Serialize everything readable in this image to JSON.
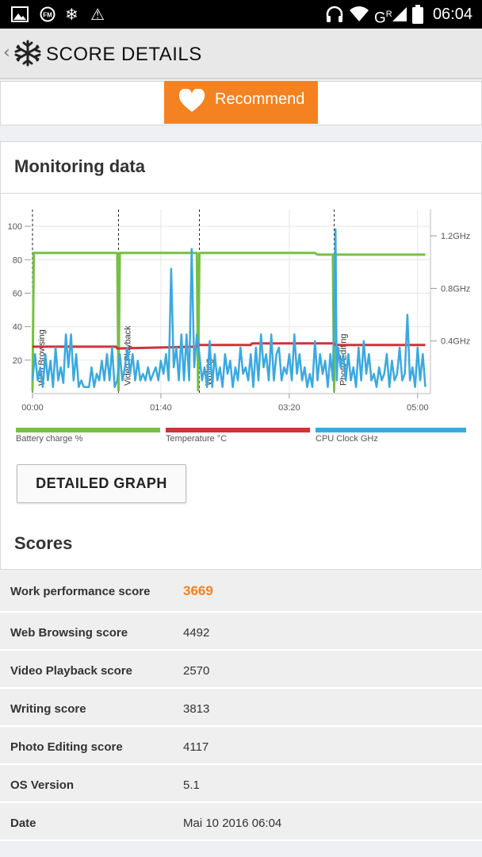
{
  "status_bar": {
    "time": "06:04",
    "network_label": "G",
    "network_superscript": "R",
    "icons": [
      "image-icon",
      "fm-icon",
      "snowflake-icon",
      "warning-icon",
      "headset-icon",
      "wifi-icon",
      "signal-icon",
      "battery-icon"
    ]
  },
  "app_bar": {
    "title": "SCORE DETAILS",
    "back_icon": "chevron-left-icon",
    "logo_icon": "snowflake-logo-icon"
  },
  "recommend": {
    "label": "Recommend",
    "icon": "heart-icon",
    "color": "#f58220"
  },
  "monitoring": {
    "title": "Monitoring data",
    "detailed_graph_button": "DETAILED GRAPH"
  },
  "chart_data": {
    "type": "line",
    "x_ticks": [
      "00:00",
      "01:40",
      "03:20",
      "05:00"
    ],
    "x_range_seconds": [
      0,
      310
    ],
    "y_left_ticks": [
      "20",
      "40",
      "60",
      "80",
      "100"
    ],
    "y_left_range": [
      0,
      110
    ],
    "y_right_ticks": [
      "0.4GHz",
      "0.8GHz",
      "1.2GHz"
    ],
    "y_right_range_ghz": [
      0,
      1.4
    ],
    "segments": [
      {
        "label": "Web Browsing",
        "start": 0
      },
      {
        "label": "Video Playback",
        "start": 67
      },
      {
        "label": "Writing",
        "start": 130
      },
      {
        "label": "Photo Editing",
        "start": 235
      }
    ],
    "legend": [
      {
        "name": "Battery charge %",
        "color": "#76c043"
      },
      {
        "name": "Temperature °C",
        "color": "#d0333a"
      },
      {
        "name": "CPU Clock GHz",
        "color": "#3ba9e0"
      }
    ],
    "series": [
      {
        "name": "Battery charge %",
        "color": "#76c043",
        "points": [
          [
            0,
            2
          ],
          [
            1,
            84
          ],
          [
            66,
            84
          ],
          [
            67,
            2
          ],
          [
            68,
            84
          ],
          [
            128,
            84
          ],
          [
            129,
            2
          ],
          [
            130,
            84
          ],
          [
            220,
            84
          ],
          [
            222,
            83
          ],
          [
            234,
            83
          ],
          [
            235,
            2
          ],
          [
            236,
            83
          ],
          [
            306,
            83
          ]
        ]
      },
      {
        "name": "Temperature °C",
        "color": "#d0333a",
        "points": [
          [
            0,
            28
          ],
          [
            65,
            28
          ],
          [
            66,
            27
          ],
          [
            128,
            28
          ],
          [
            129,
            29
          ],
          [
            170,
            29
          ],
          [
            171,
            30
          ],
          [
            235,
            30
          ],
          [
            236,
            29
          ],
          [
            306,
            29
          ]
        ]
      },
      {
        "name": "CPU Clock GHz",
        "color": "#3ba9e0",
        "points": [
          [
            0,
            0.1
          ],
          [
            2,
            0.3
          ],
          [
            4,
            0.1
          ],
          [
            6,
            0.2
          ],
          [
            8,
            0.05
          ],
          [
            10,
            0.3
          ],
          [
            12,
            0.1
          ],
          [
            14,
            0.25
          ],
          [
            16,
            0.05
          ],
          [
            18,
            0.35
          ],
          [
            20,
            0.1
          ],
          [
            22,
            0.2
          ],
          [
            24,
            0.08
          ],
          [
            26,
            0.45
          ],
          [
            28,
            0.2
          ],
          [
            30,
            0.45
          ],
          [
            32,
            0.1
          ],
          [
            34,
            0.3
          ],
          [
            36,
            0.05
          ],
          [
            38,
            0.1
          ],
          [
            40,
            0.05
          ],
          [
            42,
            0.05
          ],
          [
            44,
            0.05
          ],
          [
            46,
            0.2
          ],
          [
            48,
            0.05
          ],
          [
            50,
            0.15
          ],
          [
            52,
            0.1
          ],
          [
            54,
            0.25
          ],
          [
            56,
            0.1
          ],
          [
            58,
            0.3
          ],
          [
            60,
            0.1
          ],
          [
            62,
            0.35
          ],
          [
            64,
            0.05
          ],
          [
            66,
            0.1
          ],
          [
            68,
            0.3
          ],
          [
            70,
            0.1
          ],
          [
            72,
            0.2
          ],
          [
            74,
            0.35
          ],
          [
            76,
            0.15
          ],
          [
            78,
            0.3
          ],
          [
            80,
            0.1
          ],
          [
            82,
            0.25
          ],
          [
            84,
            0.1
          ],
          [
            86,
            0.15
          ],
          [
            88,
            0.1
          ],
          [
            90,
            0.2
          ],
          [
            92,
            0.1
          ],
          [
            94,
            0.15
          ],
          [
            96,
            0.2
          ],
          [
            98,
            0.1
          ],
          [
            100,
            0.25
          ],
          [
            102,
            0.15
          ],
          [
            104,
            0.3
          ],
          [
            106,
            0.1
          ],
          [
            108,
            0.95
          ],
          [
            110,
            0.2
          ],
          [
            112,
            0.35
          ],
          [
            114,
            0.1
          ],
          [
            116,
            0.45
          ],
          [
            118,
            0.1
          ],
          [
            120,
            0.45
          ],
          [
            122,
            0.1
          ],
          [
            124,
            1.1
          ],
          [
            126,
            0.2
          ],
          [
            128,
            0.45
          ],
          [
            130,
            0.3
          ],
          [
            132,
            0.1
          ],
          [
            134,
            0.2
          ],
          [
            136,
            0.05
          ],
          [
            138,
            0.4
          ],
          [
            140,
            0.05
          ],
          [
            142,
            0.3
          ],
          [
            144,
            0.1
          ],
          [
            146,
            0.2
          ],
          [
            148,
            0.05
          ],
          [
            150,
            0.3
          ],
          [
            152,
            0.15
          ],
          [
            154,
            0.25
          ],
          [
            156,
            0.05
          ],
          [
            158,
            0.2
          ],
          [
            160,
            0.1
          ],
          [
            162,
            0.35
          ],
          [
            164,
            0.15
          ],
          [
            166,
            0.2
          ],
          [
            168,
            0.1
          ],
          [
            170,
            0.3
          ],
          [
            172,
            0.05
          ],
          [
            174,
            0.35
          ],
          [
            176,
            0.1
          ],
          [
            178,
            0.45
          ],
          [
            180,
            0.2
          ],
          [
            182,
            0.3
          ],
          [
            184,
            0.1
          ],
          [
            186,
            0.45
          ],
          [
            188,
            0.1
          ],
          [
            190,
            0.3
          ],
          [
            192,
            0.35
          ],
          [
            194,
            0.1
          ],
          [
            196,
            0.2
          ],
          [
            198,
            0.15
          ],
          [
            200,
            0.3
          ],
          [
            202,
            0.1
          ],
          [
            204,
            0.45
          ],
          [
            206,
            0.15
          ],
          [
            208,
            0.3
          ],
          [
            210,
            0.1
          ],
          [
            212,
            0.2
          ],
          [
            214,
            0.05
          ],
          [
            216,
            0.15
          ],
          [
            218,
            0.05
          ],
          [
            220,
            0.4
          ],
          [
            222,
            0.1
          ],
          [
            224,
            0.3
          ],
          [
            226,
            0.15
          ],
          [
            228,
            0.25
          ],
          [
            230,
            0.05
          ],
          [
            232,
            0.3
          ],
          [
            234,
            0.1
          ],
          [
            236,
            1.25
          ],
          [
            237,
            0.1
          ],
          [
            238,
            0.35
          ],
          [
            240,
            0.2
          ],
          [
            242,
            0.3
          ],
          [
            244,
            0.1
          ],
          [
            246,
            0.3
          ],
          [
            248,
            0.1
          ],
          [
            250,
            0.2
          ],
          [
            252,
            0.05
          ],
          [
            254,
            0.35
          ],
          [
            256,
            0.1
          ],
          [
            258,
            0.4
          ],
          [
            260,
            0.15
          ],
          [
            262,
            0.3
          ],
          [
            264,
            0.1
          ],
          [
            266,
            0.15
          ],
          [
            268,
            0.05
          ],
          [
            270,
            0.2
          ],
          [
            272,
            0.1
          ],
          [
            274,
            0.15
          ],
          [
            276,
            0.3
          ],
          [
            278,
            0.05
          ],
          [
            280,
            0.25
          ],
          [
            282,
            0.1
          ],
          [
            284,
            0.15
          ],
          [
            286,
            0.35
          ],
          [
            288,
            0.1
          ],
          [
            290,
            0.15
          ],
          [
            292,
            0.6
          ],
          [
            294,
            0.1
          ],
          [
            296,
            0.2
          ],
          [
            298,
            0.05
          ],
          [
            300,
            0.35
          ],
          [
            302,
            0.1
          ],
          [
            304,
            0.3
          ],
          [
            306,
            0.05
          ]
        ]
      }
    ]
  },
  "scores": {
    "title": "Scores",
    "rows": [
      {
        "label": "Work performance score",
        "value": "3669"
      },
      {
        "label": "Web Browsing score",
        "value": "4492"
      },
      {
        "label": "Video Playback score",
        "value": "2570"
      },
      {
        "label": "Writing score",
        "value": "3813"
      },
      {
        "label": "Photo Editing score",
        "value": "4117"
      },
      {
        "label": "OS Version",
        "value": "5.1"
      },
      {
        "label": "Date",
        "value": "Mai 10 2016 06:04"
      }
    ]
  }
}
